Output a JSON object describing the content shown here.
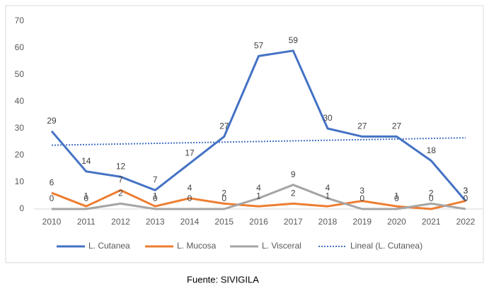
{
  "chart_data": {
    "type": "line",
    "categories": [
      "2010",
      "2011",
      "2012",
      "2013",
      "2014",
      "2015",
      "2016",
      "2017",
      "2018",
      "2019",
      "2020",
      "2021",
      "2022"
    ],
    "series": [
      {
        "name": "L. Cutanea",
        "color": "#4472c4",
        "values": [
          29,
          14,
          12,
          7,
          17,
          27,
          57,
          59,
          30,
          27,
          27,
          18,
          3
        ]
      },
      {
        "name": "L. Mucosa",
        "color": "#ed7d31",
        "values": [
          6,
          1,
          7,
          1,
          4,
          2,
          1,
          2,
          1,
          3,
          1,
          0,
          3
        ]
      },
      {
        "name": "L. Visceral",
        "color": "#a5a5a5",
        "values": [
          0,
          0,
          2,
          0,
          0,
          0,
          4,
          9,
          4,
          0,
          0,
          2,
          0
        ]
      }
    ],
    "trendline": {
      "name": "Lineal (L. Cutanea)",
      "color": "#4472c4",
      "style": "dotted"
    },
    "ylim": [
      0,
      70
    ],
    "yticks": [
      0,
      10,
      20,
      30,
      40,
      50,
      60,
      70
    ],
    "grid": false,
    "legend": "bottom",
    "source": "Fuente: SIVIGILA"
  }
}
